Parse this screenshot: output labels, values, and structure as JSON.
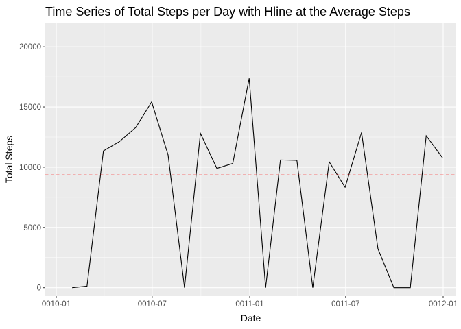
{
  "chart_data": {
    "type": "line",
    "title": "Time Series of Total Steps per Day with Hline at the Average Steps",
    "xlabel": "Date",
    "ylabel": "Total Steps",
    "x_tick_labels": [
      "0010-01",
      "0010-07",
      "0011-01",
      "0011-07",
      "0012-01"
    ],
    "y_tick_labels": [
      "0",
      "5000",
      "10000",
      "15000",
      "20000"
    ],
    "y_ticks": [
      0,
      5000,
      10000,
      15000,
      20000
    ],
    "ylim": [
      -700,
      22000
    ],
    "xlim": [
      "0010-01-01",
      "0012-01-01"
    ],
    "x": [
      "0010-01-31",
      "0010-02-28",
      "0010-03-31",
      "0010-04-30",
      "0010-05-31",
      "0010-06-30",
      "0010-07-31",
      "0010-08-31",
      "0010-09-30",
      "0010-10-31",
      "0010-11-30",
      "0010-12-31",
      "0011-01-31",
      "0011-02-28",
      "0011-03-31",
      "0011-04-30",
      "0011-05-31",
      "0011-06-30",
      "0011-07-31",
      "0011-08-31",
      "0011-09-30",
      "0011-10-31",
      "0011-11-30",
      "0011-12-31"
    ],
    "values": [
      0,
      126,
      11352,
      12116,
      13294,
      15420,
      11015,
      0,
      12811,
      9900,
      10304,
      17382,
      0,
      10600,
      10571,
      0,
      10439,
      8334,
      12883,
      3219,
      0,
      0,
      12608,
      10765
    ],
    "hline": {
      "y": 9354,
      "color": "#ff0000",
      "linestyle": "dashed"
    },
    "line_color": "#000000",
    "panel_background": "#ebebeb",
    "grid": true
  }
}
